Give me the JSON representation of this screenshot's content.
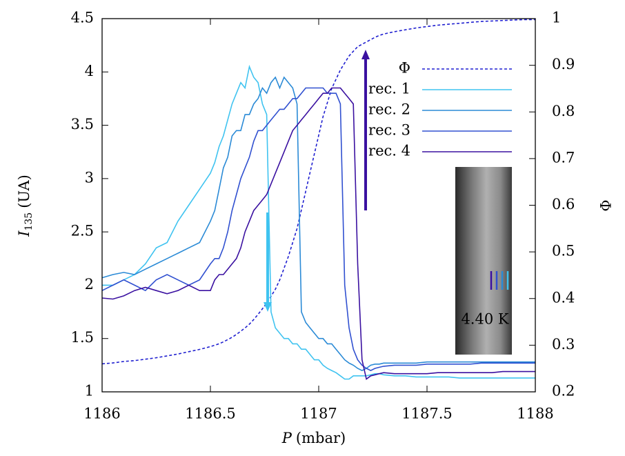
{
  "chart_data": {
    "type": "line",
    "x_label": {
      "symbol": "P",
      "unit": "(mbar)"
    },
    "y_label": {
      "symbol": "I",
      "subscript": "135",
      "unit": "(UA)"
    },
    "y2_label": "Φ",
    "annotation": "4.40 K",
    "x": [
      1186,
      1186.05,
      1186.1,
      1186.15,
      1186.2,
      1186.25,
      1186.3,
      1186.35,
      1186.4,
      1186.45,
      1186.5,
      1186.52,
      1186.54,
      1186.56,
      1186.58,
      1186.6,
      1186.62,
      1186.64,
      1186.66,
      1186.68,
      1186.7,
      1186.72,
      1186.74,
      1186.76,
      1186.78,
      1186.8,
      1186.82,
      1186.84,
      1186.86,
      1186.88,
      1186.9,
      1186.92,
      1186.94,
      1186.96,
      1186.98,
      1187,
      1187.02,
      1187.04,
      1187.06,
      1187.08,
      1187.1,
      1187.12,
      1187.14,
      1187.16,
      1187.18,
      1187.2,
      1187.22,
      1187.24,
      1187.26,
      1187.28,
      1187.3,
      1187.35,
      1187.4,
      1187.45,
      1187.5,
      1187.55,
      1187.6,
      1187.65,
      1187.7,
      1187.75,
      1187.8,
      1187.85,
      1187.9,
      1187.95,
      1188
    ],
    "series": [
      {
        "name": "Φ",
        "color": "#1f1fd0",
        "dashed": true,
        "axis": "y2",
        "values": [
          0.26,
          0.262,
          0.265,
          0.267,
          0.27,
          0.273,
          0.277,
          0.281,
          0.286,
          0.291,
          0.297,
          0.3,
          0.303,
          0.307,
          0.312,
          0.317,
          0.323,
          0.33,
          0.337,
          0.345,
          0.355,
          0.366,
          0.378,
          0.39,
          0.405,
          0.42,
          0.44,
          0.465,
          0.49,
          0.52,
          0.55,
          0.59,
          0.63,
          0.67,
          0.71,
          0.75,
          0.79,
          0.82,
          0.85,
          0.87,
          0.89,
          0.905,
          0.92,
          0.93,
          0.94,
          0.945,
          0.95,
          0.955,
          0.96,
          0.964,
          0.967,
          0.972,
          0.976,
          0.98,
          0.983,
          0.986,
          0.988,
          0.99,
          0.992,
          0.994,
          0.995,
          0.996,
          0.997,
          0.998,
          0.998
        ]
      },
      {
        "name": "rec. 1",
        "color": "#3fc3f0",
        "values": [
          2.0,
          2.0,
          2.05,
          2.1,
          2.2,
          2.35,
          2.4,
          2.6,
          2.75,
          2.9,
          3.05,
          3.15,
          3.3,
          3.4,
          3.55,
          3.7,
          3.8,
          3.9,
          3.85,
          4.05,
          3.95,
          3.9,
          3.7,
          3.6,
          1.75,
          1.6,
          1.55,
          1.5,
          1.5,
          1.45,
          1.45,
          1.4,
          1.4,
          1.35,
          1.3,
          1.3,
          1.25,
          1.22,
          1.2,
          1.18,
          1.15,
          1.12,
          1.12,
          1.15,
          1.15,
          1.15,
          1.15,
          1.16,
          1.17,
          1.17,
          1.16,
          1.15,
          1.15,
          1.14,
          1.14,
          1.14,
          1.14,
          1.13,
          1.13,
          1.13,
          1.13,
          1.13,
          1.13,
          1.13,
          1.13
        ]
      },
      {
        "name": "rec. 2",
        "color": "#2a8ad6",
        "values": [
          2.07,
          2.1,
          2.12,
          2.1,
          2.15,
          2.2,
          2.25,
          2.3,
          2.35,
          2.4,
          2.6,
          2.7,
          2.9,
          3.1,
          3.2,
          3.4,
          3.45,
          3.45,
          3.6,
          3.6,
          3.7,
          3.75,
          3.85,
          3.8,
          3.9,
          3.95,
          3.85,
          3.95,
          3.9,
          3.85,
          3.7,
          1.75,
          1.65,
          1.6,
          1.55,
          1.5,
          1.5,
          1.45,
          1.45,
          1.4,
          1.35,
          1.3,
          1.27,
          1.25,
          1.22,
          1.2,
          1.22,
          1.25,
          1.26,
          1.26,
          1.27,
          1.27,
          1.27,
          1.27,
          1.28,
          1.28,
          1.28,
          1.28,
          1.28,
          1.28,
          1.28,
          1.28,
          1.28,
          1.28,
          1.28
        ]
      },
      {
        "name": "rec. 3",
        "color": "#3050d0",
        "values": [
          1.95,
          2.0,
          2.05,
          2.0,
          1.95,
          2.05,
          2.1,
          2.05,
          2.0,
          2.05,
          2.2,
          2.25,
          2.25,
          2.35,
          2.5,
          2.7,
          2.85,
          3.0,
          3.1,
          3.2,
          3.35,
          3.45,
          3.45,
          3.5,
          3.55,
          3.6,
          3.65,
          3.65,
          3.7,
          3.75,
          3.75,
          3.8,
          3.85,
          3.85,
          3.85,
          3.85,
          3.85,
          3.8,
          3.8,
          3.8,
          3.7,
          2.0,
          1.6,
          1.4,
          1.3,
          1.25,
          1.22,
          1.2,
          1.22,
          1.23,
          1.24,
          1.25,
          1.25,
          1.25,
          1.26,
          1.26,
          1.26,
          1.26,
          1.26,
          1.27,
          1.27,
          1.27,
          1.27,
          1.27,
          1.27
        ]
      },
      {
        "name": "rec. 4",
        "color": "#3a10a0",
        "values": [
          1.88,
          1.87,
          1.9,
          1.95,
          1.98,
          1.95,
          1.92,
          1.95,
          2.0,
          1.95,
          1.95,
          2.05,
          2.1,
          2.1,
          2.15,
          2.2,
          2.25,
          2.35,
          2.5,
          2.6,
          2.7,
          2.75,
          2.8,
          2.85,
          2.95,
          3.05,
          3.15,
          3.25,
          3.35,
          3.45,
          3.5,
          3.55,
          3.6,
          3.65,
          3.7,
          3.75,
          3.8,
          3.8,
          3.85,
          3.85,
          3.85,
          3.8,
          3.75,
          3.7,
          2.2,
          1.3,
          1.12,
          1.15,
          1.16,
          1.17,
          1.18,
          1.17,
          1.17,
          1.17,
          1.17,
          1.18,
          1.18,
          1.18,
          1.18,
          1.18,
          1.18,
          1.19,
          1.19,
          1.19,
          1.19
        ]
      }
    ],
    "xlim": [
      1186,
      1188
    ],
    "xticks": [
      1186,
      1186.5,
      1187,
      1187.5,
      1188
    ],
    "ylim": [
      1,
      4.5
    ],
    "yticks": [
      1,
      1.5,
      2,
      2.5,
      3,
      3.5,
      4,
      4.5
    ],
    "y2lim": [
      0.2,
      1
    ],
    "y2ticks": [
      0.2,
      0.3,
      0.4,
      0.5,
      0.6,
      0.7,
      0.8,
      0.9,
      1
    ],
    "grid": false,
    "legend": "upper right"
  }
}
